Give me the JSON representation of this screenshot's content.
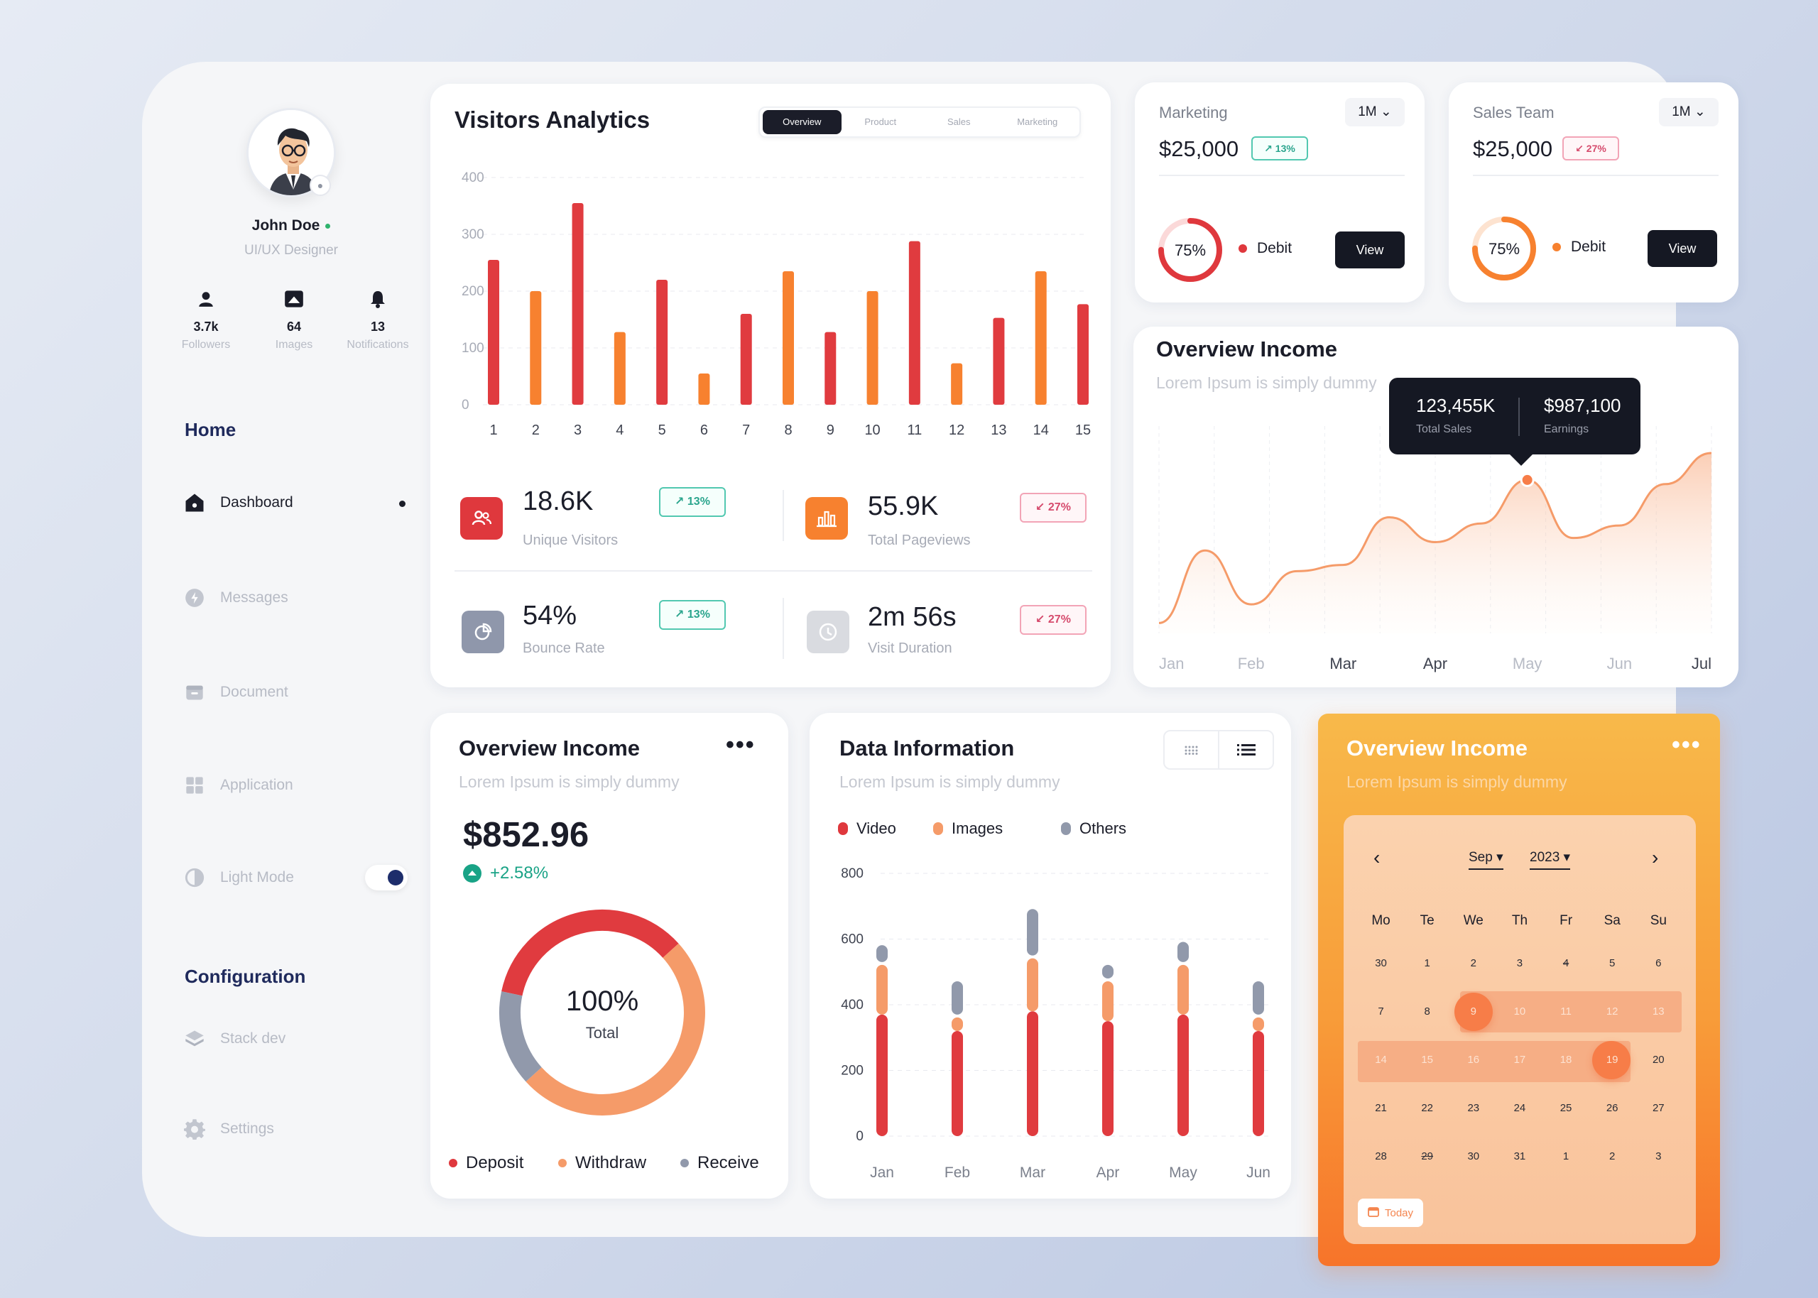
{
  "profile": {
    "name": "John Doe",
    "role": "UI/UX Designer",
    "stats": [
      {
        "value": "3.7k",
        "label": "Followers"
      },
      {
        "value": "64",
        "label": "Images"
      },
      {
        "value": "13",
        "label": "Notifications"
      }
    ]
  },
  "sidebar": {
    "home_title": "Home",
    "items": [
      {
        "label": "Dashboard"
      },
      {
        "label": "Messages"
      },
      {
        "label": "Document"
      },
      {
        "label": "Application"
      },
      {
        "label": "Light Mode"
      }
    ],
    "config_title": "Configuration",
    "config_items": [
      {
        "label": "Stack dev"
      },
      {
        "label": "Settings"
      }
    ]
  },
  "visitors": {
    "title": "Visitors Analytics",
    "tabs": [
      "Overview",
      "Product",
      "Sales",
      "Marketing"
    ],
    "kpis": [
      {
        "value": "18.6K",
        "label": "Unique Visitors",
        "change": "13%",
        "dir": "up"
      },
      {
        "value": "55.9K",
        "label": "Total Pageviews",
        "change": "27%",
        "dir": "down"
      },
      {
        "value": "54%",
        "label": "Bounce Rate",
        "change": "13%",
        "dir": "up"
      },
      {
        "value": "2m 56s",
        "label": "Visit Duration",
        "change": "27%",
        "dir": "down"
      }
    ]
  },
  "marketing": {
    "title": "Marketing",
    "period": "1M",
    "value": "$25,000",
    "change": "13%",
    "percent_label": "75%",
    "percent": 75,
    "debit": "Debit",
    "button": "View"
  },
  "sales_team": {
    "title": "Sales Team",
    "period": "1M",
    "value": "$25,000",
    "change": "27%",
    "percent_label": "75%",
    "percent": 75,
    "debit": "Debit",
    "button": "View"
  },
  "income_line": {
    "title": "Overview Income",
    "subtitle": "Lorem Ipsum is simply dummy",
    "tooltip": {
      "sales": "123,455K",
      "sales_label": "Total Sales",
      "earnings": "$987,100",
      "earnings_label": "Earnings"
    }
  },
  "income_donut": {
    "title": "Overview Income",
    "subtitle": "Lorem Ipsum is simply dummy",
    "amount": "$852.96",
    "change": "+2.58%",
    "center_value": "100%",
    "center_label": "Total",
    "legend": [
      "Deposit",
      "Withdraw",
      "Receive"
    ]
  },
  "data_info": {
    "title": "Data Information",
    "subtitle": "Lorem Ipsum is simply dummy",
    "legend": [
      "Video",
      "Images",
      "Others"
    ]
  },
  "calendar_card": {
    "title": "Overview Income",
    "subtitle": "Lorem Ipsum is simply dummy",
    "month": "Sep",
    "year": "2023",
    "weekdays": [
      "Mo",
      "Te",
      "We",
      "Th",
      "Fr",
      "Sa",
      "Su"
    ],
    "weeks": [
      [
        "30",
        "1",
        "2",
        "3",
        "4",
        "5",
        "6"
      ],
      [
        "7",
        "8",
        "9",
        "10",
        "11",
        "12",
        "13"
      ],
      [
        "14",
        "15",
        "16",
        "17",
        "18",
        "19",
        "20"
      ],
      [
        "21",
        "22",
        "23",
        "24",
        "25",
        "26",
        "27"
      ],
      [
        "28",
        "29",
        "30",
        "31",
        "1",
        "2",
        "3"
      ]
    ],
    "today_label": "Today"
  },
  "colors": {
    "red": "#e03b3f",
    "orange": "#f7812f",
    "gray": "#9199ab",
    "dark": "#151823",
    "peach": "#f59b69"
  },
  "chart_data": [
    {
      "type": "bar",
      "title": "Visitors Analytics",
      "categories": [
        "1",
        "2",
        "3",
        "4",
        "5",
        "6",
        "7",
        "8",
        "9",
        "10",
        "11",
        "12",
        "13",
        "14",
        "15"
      ],
      "values": [
        255,
        200,
        355,
        128,
        220,
        55,
        160,
        235,
        128,
        200,
        288,
        73,
        153,
        235,
        177
      ],
      "ylim": [
        0,
        400
      ],
      "yticks": [
        "0",
        "100",
        "200",
        "300",
        "400"
      ]
    },
    {
      "type": "area",
      "title": "Overview Income",
      "categories": [
        "Jan",
        "Feb",
        "Mar",
        "Apr",
        "May",
        "Jun",
        "Jul"
      ],
      "x": [
        0,
        0.5,
        1,
        1.5,
        2,
        2.5,
        3,
        3.5,
        4,
        4.5,
        5,
        5.5,
        6
      ],
      "values": [
        5,
        40,
        14,
        30,
        33,
        56,
        44,
        53,
        74,
        46,
        52,
        72,
        87
      ],
      "ylim": [
        0,
        100
      ],
      "highlight_index": 8
    },
    {
      "type": "pie",
      "title": "Overview Income",
      "labels": [
        "Deposit",
        "Withdraw",
        "Receive"
      ],
      "values": [
        35,
        50,
        15
      ]
    },
    {
      "type": "bar",
      "title": "Data Information",
      "categories": [
        "Jan",
        "Feb",
        "Mar",
        "Apr",
        "May",
        "Jun"
      ],
      "series": [
        {
          "name": "Video",
          "values": [
            370,
            320,
            380,
            350,
            370,
            320
          ]
        },
        {
          "name": "Images",
          "values": [
            160,
            50,
            170,
            130,
            160,
            50
          ]
        },
        {
          "name": "Others",
          "values": [
            60,
            110,
            150,
            50,
            70,
            110
          ]
        }
      ],
      "ylim": [
        0,
        800
      ],
      "yticks": [
        "0",
        "200",
        "400",
        "600",
        "800"
      ]
    }
  ]
}
